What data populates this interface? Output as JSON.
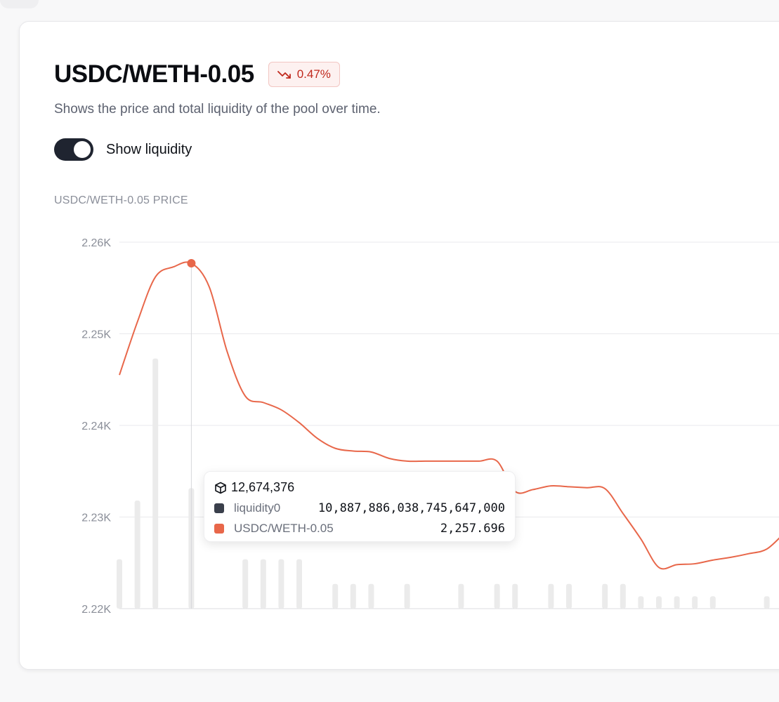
{
  "header": {
    "title": "USDC/WETH-0.05",
    "change_badge": "0.47%",
    "subtitle": "Shows the price and total liquidity of the pool over time."
  },
  "toggle": {
    "label": "Show liquidity",
    "on": true
  },
  "axis_caption": "USDC/WETH-0.05 PRICE",
  "colors": {
    "price_line": "#e8674a",
    "liquidity_bar": "#ebebeb",
    "negative": "#c0291d",
    "liquidity_swatch": "#3a3f4b"
  },
  "tooltip": {
    "block": "12,674,376",
    "rows": [
      {
        "name": "liquidity0",
        "value": "10,887,886,038,745,647,000"
      },
      {
        "name": "USDC/WETH-0.05",
        "value": "2,257.696"
      }
    ]
  },
  "chart_data": {
    "type": "line",
    "title": "",
    "ylabel": "USDC/WETH-0.05 PRICE",
    "ylim": [
      2220,
      2260
    ],
    "yticks": [
      "2.22K",
      "2.23K",
      "2.24K",
      "2.25K",
      "2.26K"
    ],
    "series": [
      {
        "name": "USDC/WETH-0.05",
        "points": [
          [
            0,
            2245.5
          ],
          [
            1,
            2251.3
          ],
          [
            2,
            2256.2
          ],
          [
            3,
            2257.3
          ],
          [
            4,
            2257.7
          ],
          [
            5,
            2255.1
          ],
          [
            6,
            2248.0
          ],
          [
            7,
            2243.2
          ],
          [
            8,
            2242.5
          ],
          [
            9,
            2241.7
          ],
          [
            10,
            2240.3
          ],
          [
            11,
            2238.6
          ],
          [
            12,
            2237.5
          ],
          [
            13,
            2237.2
          ],
          [
            14,
            2237.1
          ],
          [
            15,
            2236.4
          ],
          [
            16,
            2236.1
          ],
          [
            17,
            2236.1
          ],
          [
            18,
            2236.1
          ],
          [
            19,
            2236.1
          ],
          [
            20,
            2236.1
          ],
          [
            21,
            2236.1
          ],
          [
            22,
            2232.8
          ],
          [
            23,
            2233.0
          ],
          [
            24,
            2233.4
          ],
          [
            25,
            2233.3
          ],
          [
            26,
            2233.2
          ],
          [
            27,
            2233.1
          ],
          [
            28,
            2230.4
          ],
          [
            29,
            2227.6
          ],
          [
            30,
            2224.5
          ],
          [
            31,
            2224.8
          ],
          [
            32,
            2224.9
          ],
          [
            33,
            2225.3
          ],
          [
            34,
            2225.6
          ],
          [
            35,
            2226.0
          ],
          [
            36,
            2226.5
          ],
          [
            37,
            2228.3
          ]
        ]
      }
    ],
    "liquidity_bars": {
      "name": "liquidity0",
      "x": [
        0,
        1,
        2,
        4,
        7,
        8,
        9,
        10,
        12,
        13,
        14,
        16,
        19,
        21,
        22,
        24,
        25,
        27,
        28,
        29,
        30,
        31,
        32,
        33,
        36
      ],
      "relative_height": [
        0.16,
        0.35,
        0.81,
        0.39,
        0.16,
        0.16,
        0.16,
        0.16,
        0.08,
        0.08,
        0.08,
        0.08,
        0.08,
        0.08,
        0.08,
        0.08,
        0.08,
        0.08,
        0.08,
        0.04,
        0.04,
        0.04,
        0.04,
        0.04,
        0.04
      ]
    },
    "highlight_index": 4
  }
}
